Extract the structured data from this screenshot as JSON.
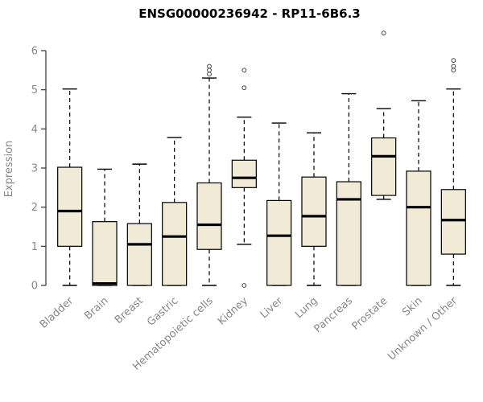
{
  "chart_data": {
    "type": "boxplot",
    "title": "ENSG00000236942 - RP11-6B6.3",
    "xlabel": "",
    "ylabel": "Expression",
    "ylim": [
      0,
      6
    ],
    "yticks": [
      0,
      1,
      2,
      3,
      4,
      5,
      6
    ],
    "grid": false,
    "legend": "none",
    "box_fill_color": "#f0ead6",
    "box_stroke_color": "#000000",
    "whisker_style": "dashed",
    "outlier_marker": "open-circle",
    "categories": [
      "Bladder",
      "Brain",
      "Breast",
      "Gastric",
      "Hematopoietic cells",
      "Kidney",
      "Liver",
      "Lung",
      "Pancreas",
      "Prostate",
      "Skin",
      "Unknown / Other"
    ],
    "series": [
      {
        "name": "Bladder",
        "whisker_low": 0,
        "q1": 1.0,
        "median": 1.9,
        "q3": 3.02,
        "whisker_high": 5.02,
        "outliers": []
      },
      {
        "name": "Brain",
        "whisker_low": 0,
        "q1": 0.0,
        "median": 0.05,
        "q3": 1.63,
        "whisker_high": 2.97,
        "outliers": []
      },
      {
        "name": "Breast",
        "whisker_low": 0,
        "q1": 0.0,
        "median": 1.05,
        "q3": 1.58,
        "whisker_high": 3.1,
        "outliers": []
      },
      {
        "name": "Gastric",
        "whisker_low": 0,
        "q1": 0.0,
        "median": 1.25,
        "q3": 2.12,
        "whisker_high": 3.78,
        "outliers": []
      },
      {
        "name": "Hematopoietic cells",
        "whisker_low": 0,
        "q1": 0.92,
        "median": 1.55,
        "q3": 2.62,
        "whisker_high": 5.3,
        "outliers": [
          5.4,
          5.5,
          5.6
        ]
      },
      {
        "name": "Kidney",
        "whisker_low": 1.05,
        "q1": 2.5,
        "median": 2.75,
        "q3": 3.2,
        "whisker_high": 4.3,
        "outliers": [
          5.5,
          5.05,
          0.0
        ]
      },
      {
        "name": "Liver",
        "whisker_low": 0,
        "q1": 0.0,
        "median": 1.27,
        "q3": 2.17,
        "whisker_high": 4.15,
        "outliers": []
      },
      {
        "name": "Lung",
        "whisker_low": 0,
        "q1": 1.0,
        "median": 1.77,
        "q3": 2.77,
        "whisker_high": 3.9,
        "outliers": []
      },
      {
        "name": "Pancreas",
        "whisker_low": 0,
        "q1": 0.0,
        "median": 2.2,
        "q3": 2.65,
        "whisker_high": 4.9,
        "outliers": []
      },
      {
        "name": "Prostate",
        "whisker_low": 2.2,
        "q1": 2.3,
        "median": 3.3,
        "q3": 3.77,
        "whisker_high": 4.52,
        "outliers": [
          6.45
        ]
      },
      {
        "name": "Skin",
        "whisker_low": 0,
        "q1": 0.0,
        "median": 2.0,
        "q3": 2.92,
        "whisker_high": 4.72,
        "outliers": []
      },
      {
        "name": "Unknown / Other",
        "whisker_low": 0,
        "q1": 0.8,
        "median": 1.67,
        "q3": 2.45,
        "whisker_high": 5.02,
        "outliers": [
          5.5,
          5.6,
          5.75
        ]
      }
    ]
  }
}
